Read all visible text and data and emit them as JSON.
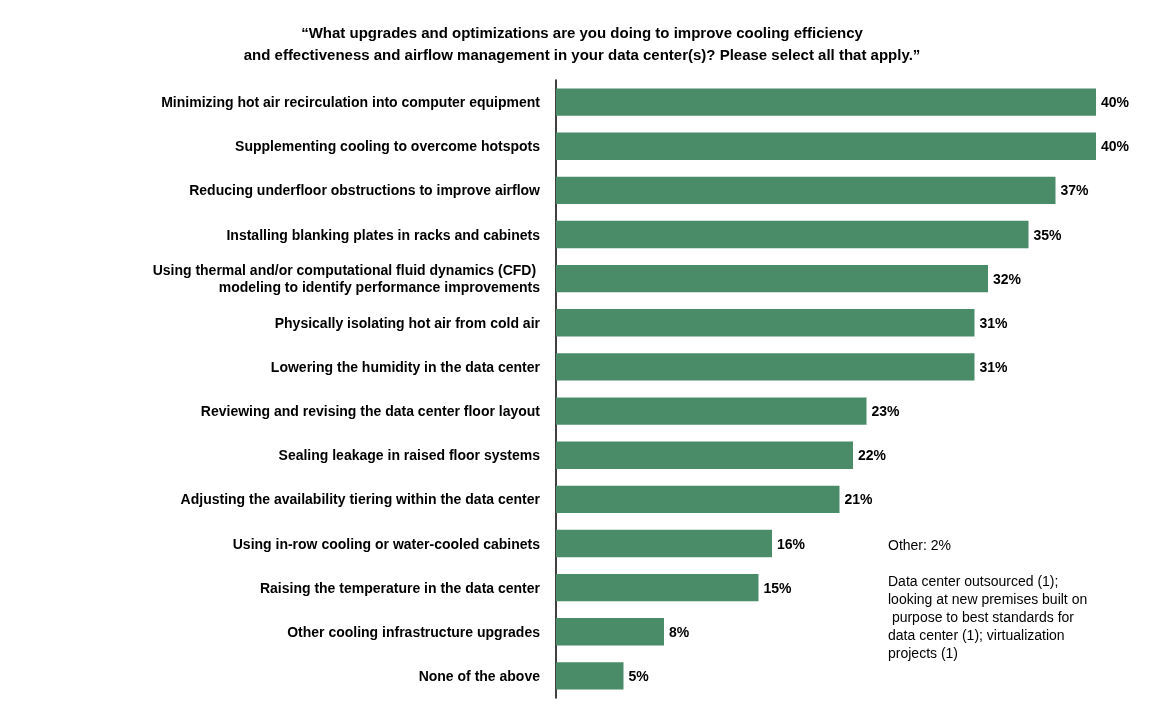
{
  "chart_data": {
    "type": "bar",
    "orientation": "horizontal",
    "title": "“What upgrades and optimizations are you doing to improve cooling efficiency\nand effectiveness and airflow management in your data center(s)? Please select all that apply.”",
    "categories": [
      "Minimizing hot air recirculation into computer equipment",
      "Supplementing cooling to overcome hotspots",
      "Reducing underfloor obstructions to improve airflow",
      "Installing blanking plates in racks and cabinets",
      "Using thermal and/or computational fluid dynamics (CFD) modeling to identify performance improvements",
      "Physically isolating hot air from cold air",
      "Lowering the humidity in the data center",
      "Reviewing and revising the data center floor layout",
      "Sealing leakage in raised floor systems",
      "Adjusting the availability tiering within the data center",
      "Using in-row cooling or water-cooled cabinets",
      "Raising the temperature in the data center",
      "Other cooling infrastructure upgrades",
      "None of the above"
    ],
    "values": [
      40,
      40,
      37,
      35,
      32,
      31,
      31,
      23,
      22,
      21,
      16,
      15,
      8,
      5
    ],
    "value_labels": [
      "40%",
      "40%",
      "37%",
      "35%",
      "32%",
      "31%",
      "31%",
      "23%",
      "22%",
      "21%",
      "16%",
      "15%",
      "8%",
      "5%"
    ],
    "color": "#4a8c68",
    "annotations": [
      "Other: 2%",
      "Data center outsourced (1); looking at new premises built on purpose to best standards for data center (1); virtualization projects (1)"
    ]
  }
}
